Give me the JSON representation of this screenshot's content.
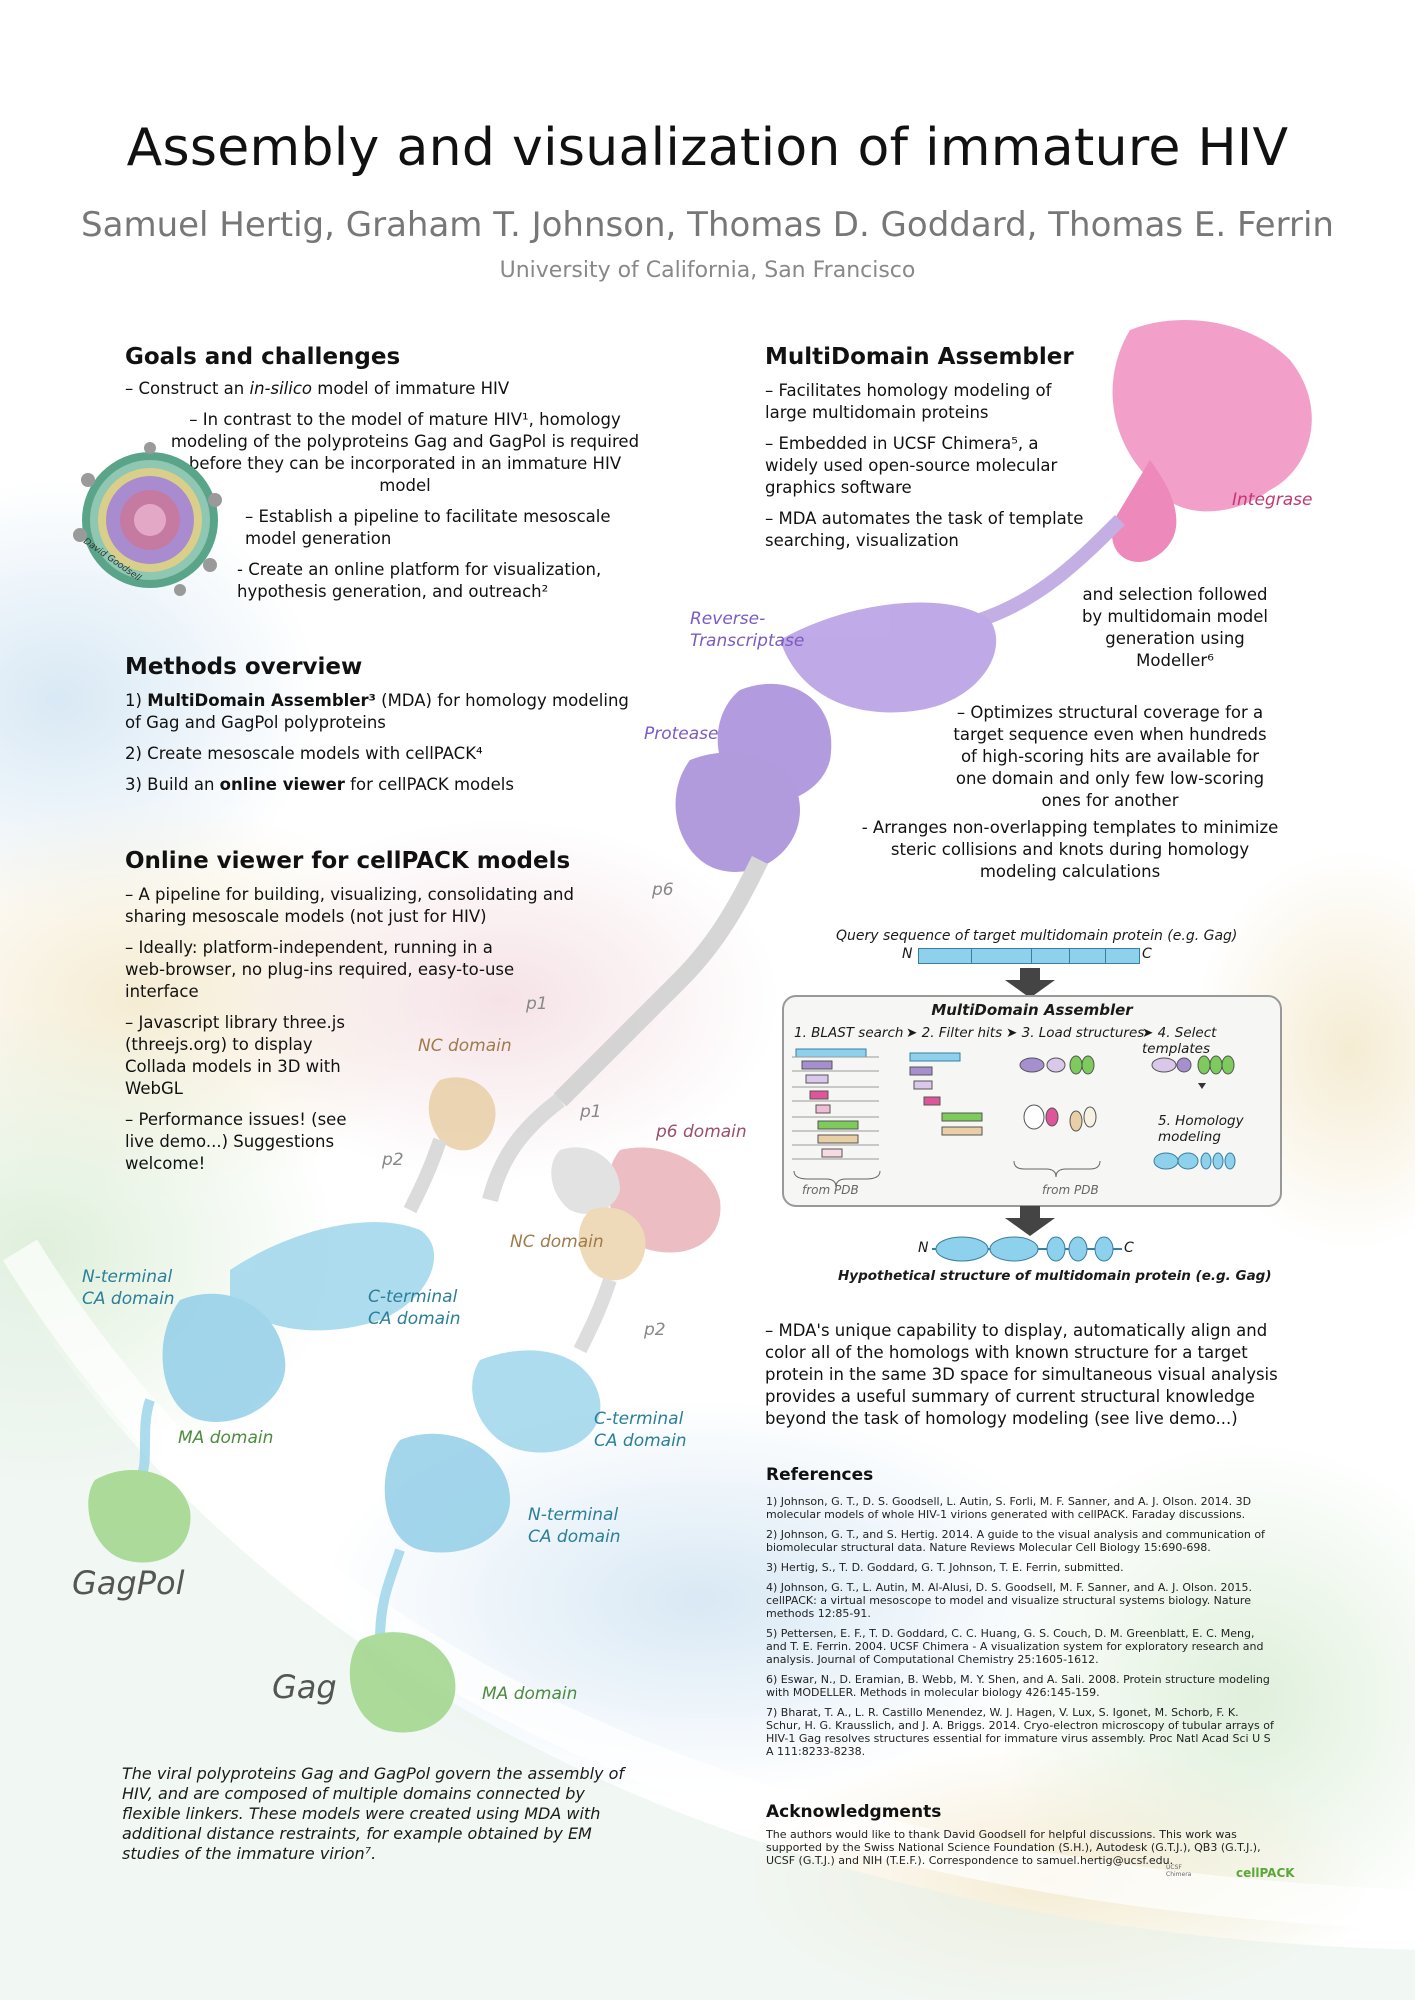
{
  "title": "Assembly and visualization of immature HIV",
  "authors": "Samuel Hertig, Graham T. Johnson, Thomas D. Goddard, Thomas E. Ferrin",
  "affiliation": "University of California, San Francisco",
  "goals": {
    "heading": "Goals and challenges",
    "b1_pre": "– Construct an ",
    "b1_ital": "in-silico",
    "b1_post": " model of immature HIV",
    "b2": "– In contrast to the model of mature HIV¹, homology modeling of the polyproteins Gag and GagPol is required before they can be incorporated in an immature HIV model",
    "b3": "– Establish a pipeline to facilitate mesoscale model generation",
    "b4": "- Create an online platform for visualization, hypothesis generation, and outreach²",
    "credit": "David Goodsell"
  },
  "methods": {
    "heading": "Methods overview",
    "m1_pre": "1) ",
    "m1_bold": "MultiDomain Assembler³",
    "m1_post": " (MDA) for homology modeling of Gag and GagPol polyproteins",
    "m2": "2) Create mesoscale models with cellPACK⁴",
    "m3_pre": "3) Build an ",
    "m3_bold": "online viewer",
    "m3_post": " for cellPACK models"
  },
  "viewer": {
    "heading": "Online viewer for cellPACK models",
    "v1": "– A pipeline for building, visualizing, consolidating and sharing mesoscale models (not just for HIV)",
    "v2": "– Ideally: platform-independent, running in a web-browser, no plug-ins required, easy-to-use interface",
    "v3": "– Javascript library three.js (threejs.org) to display Collada models in 3D with WebGL",
    "v4": "– Performance issues! (see live demo...) Suggestions welcome!"
  },
  "mda": {
    "heading": "MultiDomain Assembler",
    "a1": "– Facilitates homology modeling of large multidomain proteins",
    "a2": "– Embedded in UCSF Chimera⁵, a widely used open-source molecular graphics software",
    "a3": "– MDA automates the task of template searching, visualization",
    "a3b": "and selection followed by multidomain model generation using Modeller⁶",
    "a4": "– Optimizes structural coverage for a target sequence even when hundreds of high-scoring hits are available for one domain and only few low-scoring ones for another",
    "a5": "- Arranges non-overlapping templates to minimize steric collisions and knots during homology modeling calculations",
    "a6": "– MDA's unique capability to display, automatically align and color all of the homologs with known structure for a target protein in the same 3D space for simultaneous visual analysis provides a useful summary of current structural knowledge beyond the task of homology modeling (see live demo...)"
  },
  "diagram": {
    "query": "Query sequence of target multidomain protein (e.g. Gag)",
    "n": "N",
    "c": "C",
    "box_title": "MultiDomain Assembler",
    "step1": "1. BLAST search",
    "step2": "➤ 2. Filter hits",
    "step3": "➤ 3. Load structures",
    "step4": "➤ 4. Select templates",
    "step5": "5. Homology modeling",
    "from_pdb1": "from PDB",
    "from_pdb2": "from PDB",
    "hypo": "Hypothetical structure of multidomain protein (e.g. Gag)",
    "colors": {
      "blue": "#8ed1ec",
      "purple": "#a58fcf",
      "pink": "#e0559a",
      "green": "#7dcb5a",
      "tan": "#e8cfa6",
      "lavender": "#d9c8ea"
    }
  },
  "labels": {
    "integrase": "Integrase",
    "rt": "Reverse-\nTranscriptase",
    "protease": "Protease",
    "p6a": "p6",
    "p1a": "p1",
    "nc1": "NC domain",
    "p2a": "p2",
    "p1b": "p1",
    "p6dom": "p6 domain",
    "ntca1": "N-terminal\nCA domain",
    "ctca1": "C-terminal\nCA domain",
    "nc2": "NC domain",
    "p2b": "p2",
    "ma1": "MA domain",
    "ctca2": "C-terminal\nCA domain",
    "ntca2": "N-terminal\nCA domain",
    "gagpol": "GagPol",
    "gag": "Gag",
    "ma2": "MA domain"
  },
  "caption": "The viral polyproteins Gag and GagPol govern the assembly of HIV, and are composed of multiple domains connected by flexible linkers. These models were created using MDA with additional distance restraints, for example obtained by EM studies of the immature virion⁷.",
  "references": {
    "heading": "References",
    "items": [
      "1) Johnson, G. T., D. S. Goodsell, L. Autin, S. Forli, M. F. Sanner, and A. J. Olson. 2014. 3D molecular models of whole HIV-1 virions generated with cellPACK. Faraday discussions.",
      "2) Johnson, G. T., and S. Hertig. 2014. A guide to the visual analysis and communication of biomolecular structural data. Nature Reviews Molecular Cell Biology 15:690-698.",
      "3) Hertig, S., T. D. Goddard, G. T. Johnson, T. E. Ferrin, submitted.",
      "4) Johnson, G. T., L. Autin, M. Al-Alusi, D. S. Goodsell, M. F. Sanner, and A. J. Olson. 2015. cellPACK: a virtual mesoscope to model and visualize structural systems biology. Nature methods 12:85-91.",
      "5) Pettersen, E. F., T. D. Goddard, C. C. Huang, G. S. Couch, D. M. Greenblatt, E. C. Meng, and T. E. Ferrin. 2004. UCSF Chimera - A visualization system for exploratory research and analysis. Journal of Computational Chemistry 25:1605-1612.",
      "6) Eswar, N., D. Eramian, B. Webb, M. Y. Shen, and A. Sali. 2008. Protein structure modeling with MODELLER. Methods in molecular biology 426:145-159.",
      "7) Bharat, T. A., L. R. Castillo Menendez, W. J. Hagen, V. Lux, S. Igonet, M. Schorb, F. K. Schur, H. G. Krausslich, and J. A. Briggs. 2014. Cryo-electron microscopy of tubular arrays of HIV-1 Gag resolves structures essential for immature virus assembly. Proc Natl Acad Sci U S A 111:8233-8238."
    ]
  },
  "ack": {
    "heading": "Acknowledgments",
    "text": "The authors would like to thank David Goodsell for helpful discussions. This work was supported by the Swiss National Science Foundation (S.H.), Autodesk (G.T.J.), QB3 (G.T.J.), UCSF (G.T.J.) and NIH (T.E.F.). Correspondence to samuel.hertig@ucsf.edu.",
    "logo1": "UCSF Chimera",
    "logo2": "cellPACK"
  }
}
